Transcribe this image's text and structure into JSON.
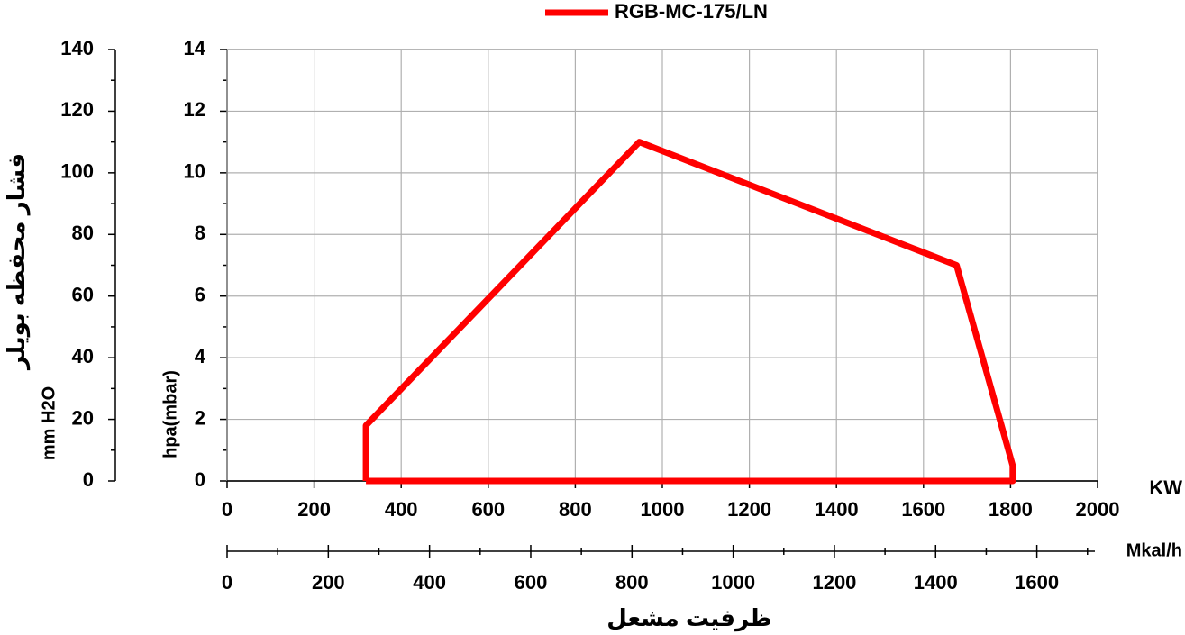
{
  "chart_data": {
    "type": "line",
    "x": [
      319,
      319,
      947,
      1676,
      1805,
      1805,
      319
    ],
    "series": [
      {
        "name": "RGB-MC-175/LN",
        "color": "#ff0000",
        "values": [
          0,
          1.8,
          11,
          7,
          0.5,
          0,
          0
        ]
      }
    ],
    "xlim": [
      0,
      2000
    ],
    "xticks": [
      0,
      200,
      400,
      600,
      800,
      1000,
      1200,
      1400,
      1600,
      1800,
      2000
    ],
    "x_label": "KW",
    "x2lim": [
      0,
      1720
    ],
    "x2ticks": [
      0,
      200,
      400,
      600,
      800,
      1000,
      1200,
      1400,
      1600
    ],
    "x2_label": "Mkal/h",
    "x_title": "ظرفیت مشعل",
    "ylim": [
      0,
      14
    ],
    "yticks": [
      0,
      2,
      4,
      6,
      8,
      10,
      12,
      14
    ],
    "y_label": "hpa(mbar)",
    "y2lim": [
      0,
      140
    ],
    "y2ticks": [
      0,
      20,
      40,
      60,
      80,
      100,
      120,
      140
    ],
    "y2_label": "mm H2O",
    "y2_title": "فشار محفظه بویلر",
    "grid": true,
    "legend": "top"
  }
}
